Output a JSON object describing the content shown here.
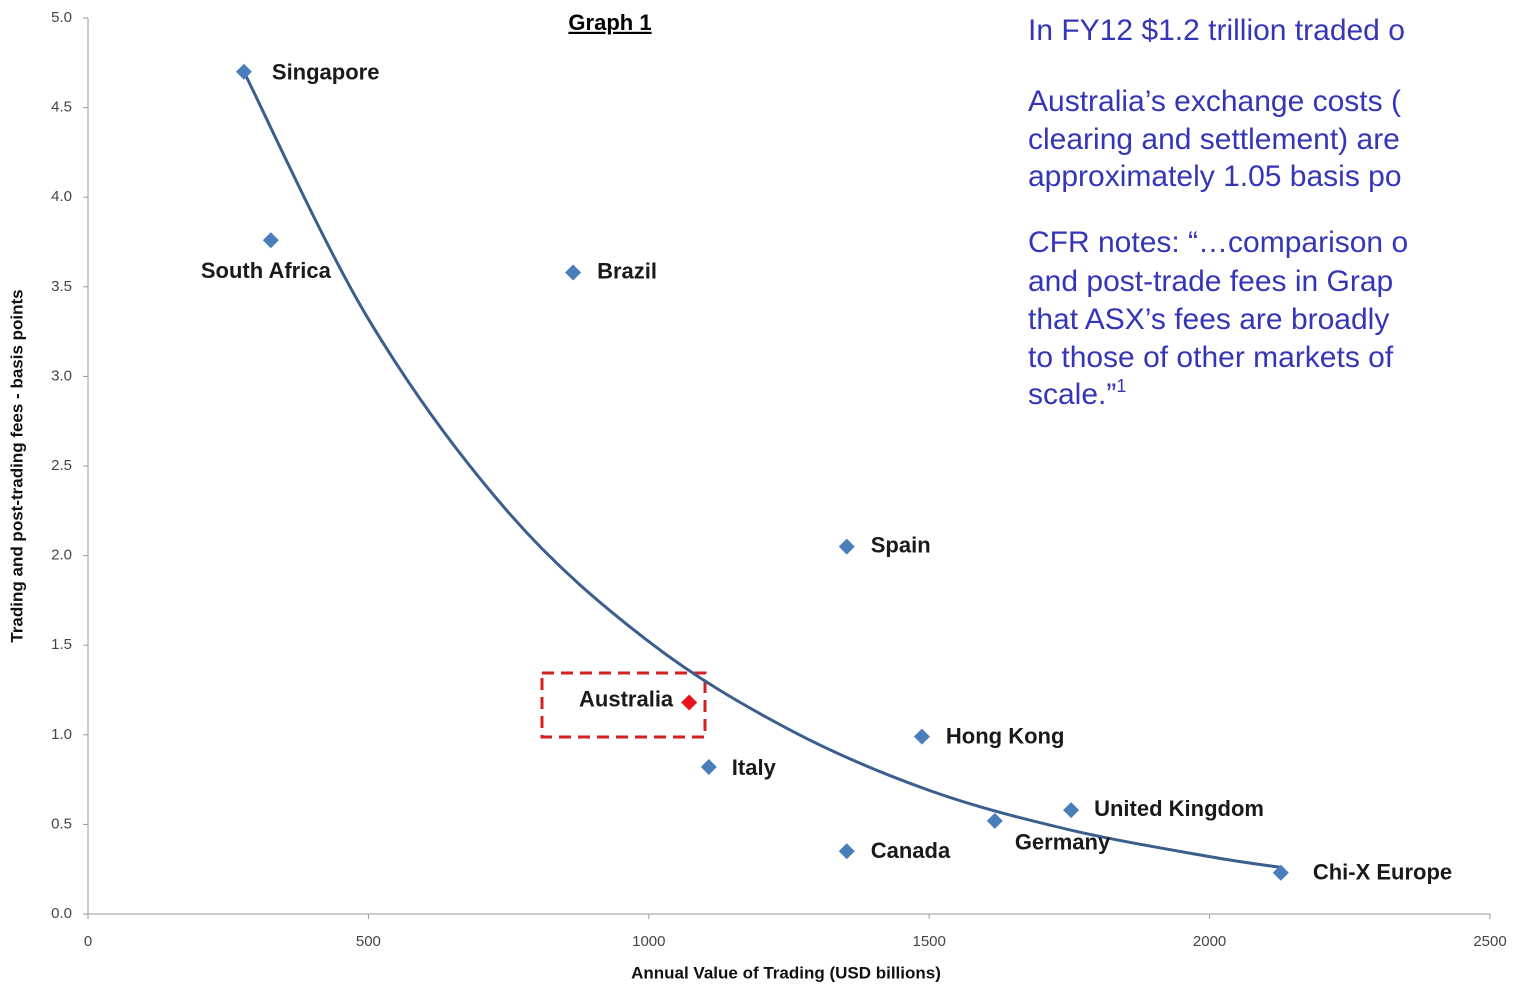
{
  "chart_data": {
    "type": "scatter",
    "title": "Graph 1",
    "x_label": "Annual Value of Trading (USD billions)",
    "y_label": "Trading and post-trading fees - basis points",
    "labels": [
      "Singapore",
      "South Africa",
      "Brazil",
      "Spain",
      "Australia",
      "Italy",
      "Hong Kong",
      "United Kingdom",
      "Germany",
      "Canada",
      "Chi-X Europe"
    ],
    "x": [
      278,
      326,
      865,
      1353,
      1072,
      1107,
      1487,
      1753,
      1617,
      1353,
      2127
    ],
    "values": [
      4.7,
      3.76,
      3.58,
      2.05,
      1.18,
      0.82,
      0.99,
      0.58,
      0.52,
      0.35,
      0.23
    ],
    "colors": [
      "#4a7ebb",
      "#4a7ebb",
      "#4a7ebb",
      "#4a7ebb",
      "#e8141b",
      "#4a7ebb",
      "#4a7ebb",
      "#4a7ebb",
      "#4a7ebb",
      "#4a7ebb",
      "#4a7ebb"
    ],
    "trend": {
      "color": "#3b5e8c",
      "x": [
        278,
        500,
        750,
        1000,
        1250,
        1500,
        1750,
        2000,
        2127
      ],
      "values": [
        4.7,
        3.32,
        2.24,
        1.52,
        1.03,
        0.69,
        0.47,
        0.32,
        0.26
      ]
    },
    "xlim": [
      0,
      2500
    ],
    "xticks": [
      0,
      500,
      1000,
      1500,
      2000,
      2500
    ],
    "ylim": [
      0,
      5
    ],
    "yticks": [
      {
        "value": 0,
        "label": "0.0"
      },
      0.5,
      {
        "value": 1,
        "label": "1.0"
      },
      1.5,
      {
        "value": 2,
        "label": "2.0"
      },
      2.5,
      {
        "value": 3,
        "label": "3.0"
      },
      3.5,
      {
        "value": 4,
        "label": "4.0"
      },
      4.5,
      {
        "value": 5,
        "label": "5.0"
      }
    ]
  },
  "notes": [
    {
      "lines": [
        "In FY12 $1.2 trillion traded o"
      ]
    },
    {
      "lines": [
        "Australia’s exchange costs (",
        "clearing and settlement) are",
        "approximately 1.05 basis po"
      ]
    },
    {
      "lines": [
        "CFR notes: “…comparison o",
        "and post-trade fees in Grap",
        "that ASX’s fees are broadly",
        "to those of other markets of",
        "scale.”"
      ],
      "superscript": "1"
    }
  ]
}
